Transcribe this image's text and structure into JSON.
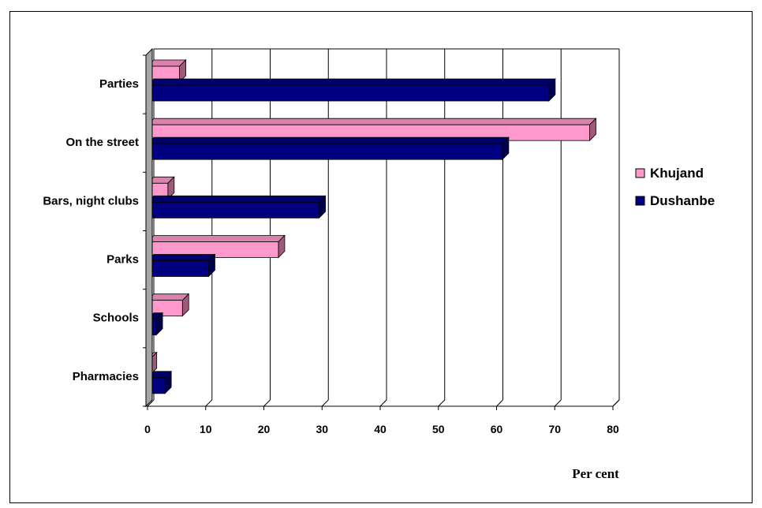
{
  "chart_data": {
    "type": "bar",
    "orientation": "horizontal",
    "categories": [
      "Parties",
      "On the street",
      "Bars, night clubs",
      "Parks",
      "Schools",
      "Pharmacies"
    ],
    "series": [
      {
        "name": "Khujand",
        "color": "#ff99cc",
        "values": [
          5.5,
          76,
          3.5,
          22.5,
          6,
          0.5
        ]
      },
      {
        "name": "Dushanbe",
        "color": "#000080",
        "values": [
          69,
          61,
          29.5,
          10.5,
          1.5,
          3
        ]
      }
    ],
    "xlabel": "Per cent",
    "xlim": [
      0,
      80
    ],
    "xticks": [
      "0",
      "10",
      "20",
      "30",
      "40",
      "50",
      "60",
      "70",
      "80"
    ],
    "grid": true,
    "legend_position": "right"
  }
}
